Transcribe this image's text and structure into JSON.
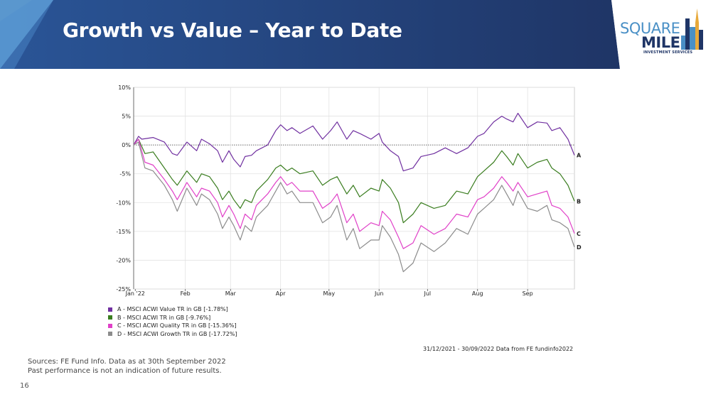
{
  "header": {
    "title": "Growth vs Value – Year to Date",
    "colors": {
      "banner_dark": "#1f3566",
      "banner_mid": "#2a5597",
      "banner_light": "#6fb3e6"
    }
  },
  "logo": {
    "line1": "SQUARE",
    "line2": "MILE",
    "line3": "INVESTMENT SERVICES",
    "icon": "building-tower-icon"
  },
  "chart_data": {
    "type": "line",
    "x_tick_labels": [
      "Jan '22",
      "Feb",
      "Mar",
      "Apr",
      "May",
      "Jun",
      "Jul",
      "Aug",
      "Sep"
    ],
    "y_tick_labels": [
      "10%",
      "5%",
      "0%",
      "-5%",
      "-10%",
      "-15%",
      "-20%",
      "-25%"
    ],
    "y_ticks": [
      10,
      5,
      0,
      -5,
      -10,
      -15,
      -20,
      -25
    ],
    "ylim": [
      -25,
      10
    ],
    "x_range": [
      "2021-12-31",
      "2022-09-30"
    ],
    "grid": true,
    "zero_line": "dotted",
    "legend_position": "bottom-left",
    "series": [
      {
        "key": "A",
        "name": "A - MSCI ACWI Value TR in GB [-1.78%]",
        "color": "#7030a0",
        "points": [
          [
            "2021-12-31",
            0
          ],
          [
            "2022-01-03",
            1.5
          ],
          [
            "2022-01-05",
            1.0
          ],
          [
            "2022-01-12",
            1.3
          ],
          [
            "2022-01-19",
            0.5
          ],
          [
            "2022-01-24",
            -1.5
          ],
          [
            "2022-01-27",
            -1.8
          ],
          [
            "2022-02-02",
            0.5
          ],
          [
            "2022-02-08",
            -1.0
          ],
          [
            "2022-02-11",
            1.0
          ],
          [
            "2022-02-16",
            0.2
          ],
          [
            "2022-02-21",
            -1.0
          ],
          [
            "2022-02-24",
            -3.0
          ],
          [
            "2022-02-28",
            -1.0
          ],
          [
            "2022-03-03",
            -2.5
          ],
          [
            "2022-03-07",
            -3.8
          ],
          [
            "2022-03-10",
            -2.0
          ],
          [
            "2022-03-14",
            -1.8
          ],
          [
            "2022-03-17",
            -1.0
          ],
          [
            "2022-03-24",
            0.0
          ],
          [
            "2022-03-29",
            2.5
          ],
          [
            "2022-04-01",
            3.5
          ],
          [
            "2022-04-05",
            2.5
          ],
          [
            "2022-04-08",
            3.0
          ],
          [
            "2022-04-13",
            2.0
          ],
          [
            "2022-04-21",
            3.3
          ],
          [
            "2022-04-27",
            1.0
          ],
          [
            "2022-05-02",
            2.5
          ],
          [
            "2022-05-06",
            4.0
          ],
          [
            "2022-05-12",
            1.0
          ],
          [
            "2022-05-16",
            2.5
          ],
          [
            "2022-05-20",
            2.0
          ],
          [
            "2022-05-27",
            1.0
          ],
          [
            "2022-06-01",
            2.0
          ],
          [
            "2022-06-03",
            0.5
          ],
          [
            "2022-06-08",
            -1.0
          ],
          [
            "2022-06-13",
            -2.0
          ],
          [
            "2022-06-16",
            -4.5
          ],
          [
            "2022-06-22",
            -4.0
          ],
          [
            "2022-06-27",
            -2.0
          ],
          [
            "2022-07-05",
            -1.5
          ],
          [
            "2022-07-12",
            -0.5
          ],
          [
            "2022-07-19",
            -1.5
          ],
          [
            "2022-07-26",
            -0.5
          ],
          [
            "2022-08-01",
            1.5
          ],
          [
            "2022-08-05",
            2.0
          ],
          [
            "2022-08-11",
            4.0
          ],
          [
            "2022-08-16",
            5.0
          ],
          [
            "2022-08-19",
            4.5
          ],
          [
            "2022-08-23",
            4.0
          ],
          [
            "2022-08-26",
            5.5
          ],
          [
            "2022-09-01",
            3.0
          ],
          [
            "2022-09-07",
            4.0
          ],
          [
            "2022-09-13",
            3.8
          ],
          [
            "2022-09-16",
            2.5
          ],
          [
            "2022-09-21",
            3.0
          ],
          [
            "2022-09-26",
            1.0
          ],
          [
            "2022-09-30",
            -1.78
          ]
        ]
      },
      {
        "key": "B",
        "name": "B - MSCI ACWI TR in GB [-9.76%]",
        "color": "#3a7d1f",
        "points": [
          [
            "2021-12-31",
            0
          ],
          [
            "2022-01-03",
            1.0
          ],
          [
            "2022-01-07",
            -1.5
          ],
          [
            "2022-01-12",
            -1.2
          ],
          [
            "2022-01-19",
            -4.0
          ],
          [
            "2022-01-24",
            -6.0
          ],
          [
            "2022-01-27",
            -7.0
          ],
          [
            "2022-02-02",
            -4.5
          ],
          [
            "2022-02-08",
            -6.5
          ],
          [
            "2022-02-11",
            -5.0
          ],
          [
            "2022-02-16",
            -5.5
          ],
          [
            "2022-02-21",
            -7.5
          ],
          [
            "2022-02-24",
            -9.5
          ],
          [
            "2022-02-28",
            -8.0
          ],
          [
            "2022-03-03",
            -9.5
          ],
          [
            "2022-03-07",
            -11.0
          ],
          [
            "2022-03-10",
            -9.5
          ],
          [
            "2022-03-14",
            -10.0
          ],
          [
            "2022-03-17",
            -8.0
          ],
          [
            "2022-03-24",
            -6.0
          ],
          [
            "2022-03-29",
            -4.0
          ],
          [
            "2022-04-01",
            -3.5
          ],
          [
            "2022-04-05",
            -4.5
          ],
          [
            "2022-04-08",
            -4.0
          ],
          [
            "2022-04-13",
            -5.0
          ],
          [
            "2022-04-21",
            -4.5
          ],
          [
            "2022-04-27",
            -7.0
          ],
          [
            "2022-05-02",
            -6.0
          ],
          [
            "2022-05-06",
            -5.5
          ],
          [
            "2022-05-12",
            -8.5
          ],
          [
            "2022-05-16",
            -7.0
          ],
          [
            "2022-05-20",
            -9.0
          ],
          [
            "2022-05-27",
            -7.5
          ],
          [
            "2022-06-01",
            -8.0
          ],
          [
            "2022-06-03",
            -6.0
          ],
          [
            "2022-06-08",
            -7.5
          ],
          [
            "2022-06-13",
            -10.0
          ],
          [
            "2022-06-16",
            -13.5
          ],
          [
            "2022-06-22",
            -12.0
          ],
          [
            "2022-06-27",
            -10.0
          ],
          [
            "2022-07-05",
            -11.0
          ],
          [
            "2022-07-12",
            -10.5
          ],
          [
            "2022-07-19",
            -8.0
          ],
          [
            "2022-07-26",
            -8.5
          ],
          [
            "2022-08-01",
            -5.5
          ],
          [
            "2022-08-05",
            -4.5
          ],
          [
            "2022-08-11",
            -3.0
          ],
          [
            "2022-08-16",
            -1.0
          ],
          [
            "2022-08-19",
            -2.0
          ],
          [
            "2022-08-23",
            -3.5
          ],
          [
            "2022-08-26",
            -1.5
          ],
          [
            "2022-09-01",
            -4.0
          ],
          [
            "2022-09-07",
            -3.0
          ],
          [
            "2022-09-13",
            -2.5
          ],
          [
            "2022-09-16",
            -4.0
          ],
          [
            "2022-09-21",
            -5.0
          ],
          [
            "2022-09-26",
            -7.0
          ],
          [
            "2022-09-30",
            -9.76
          ]
        ]
      },
      {
        "key": "C",
        "name": "C - MSCI ACWI Quality TR in GB [-15.36%]",
        "color": "#e040c8",
        "points": [
          [
            "2021-12-31",
            0
          ],
          [
            "2022-01-03",
            1.0
          ],
          [
            "2022-01-07",
            -3.0
          ],
          [
            "2022-01-12",
            -3.5
          ],
          [
            "2022-01-19",
            -6.0
          ],
          [
            "2022-01-24",
            -8.0
          ],
          [
            "2022-01-27",
            -9.5
          ],
          [
            "2022-02-02",
            -6.5
          ],
          [
            "2022-02-08",
            -9.0
          ],
          [
            "2022-02-11",
            -7.5
          ],
          [
            "2022-02-16",
            -8.0
          ],
          [
            "2022-02-21",
            -10.0
          ],
          [
            "2022-02-24",
            -12.5
          ],
          [
            "2022-02-28",
            -10.5
          ],
          [
            "2022-03-03",
            -12.0
          ],
          [
            "2022-03-07",
            -14.5
          ],
          [
            "2022-03-10",
            -12.0
          ],
          [
            "2022-03-14",
            -13.0
          ],
          [
            "2022-03-17",
            -10.5
          ],
          [
            "2022-03-24",
            -8.5
          ],
          [
            "2022-03-29",
            -6.5
          ],
          [
            "2022-04-01",
            -5.5
          ],
          [
            "2022-04-05",
            -7.0
          ],
          [
            "2022-04-08",
            -6.5
          ],
          [
            "2022-04-13",
            -8.0
          ],
          [
            "2022-04-21",
            -8.0
          ],
          [
            "2022-04-27",
            -11.0
          ],
          [
            "2022-05-02",
            -10.0
          ],
          [
            "2022-05-06",
            -8.5
          ],
          [
            "2022-05-12",
            -13.5
          ],
          [
            "2022-05-16",
            -12.0
          ],
          [
            "2022-05-20",
            -15.0
          ],
          [
            "2022-05-27",
            -13.5
          ],
          [
            "2022-06-01",
            -14.0
          ],
          [
            "2022-06-03",
            -11.5
          ],
          [
            "2022-06-08",
            -13.0
          ],
          [
            "2022-06-13",
            -16.0
          ],
          [
            "2022-06-16",
            -18.0
          ],
          [
            "2022-06-22",
            -17.0
          ],
          [
            "2022-06-27",
            -14.0
          ],
          [
            "2022-07-05",
            -15.5
          ],
          [
            "2022-07-12",
            -14.5
          ],
          [
            "2022-07-19",
            -12.0
          ],
          [
            "2022-07-26",
            -12.5
          ],
          [
            "2022-08-01",
            -9.5
          ],
          [
            "2022-08-05",
            -9.0
          ],
          [
            "2022-08-11",
            -7.5
          ],
          [
            "2022-08-16",
            -5.5
          ],
          [
            "2022-08-19",
            -6.5
          ],
          [
            "2022-08-23",
            -8.0
          ],
          [
            "2022-08-26",
            -6.5
          ],
          [
            "2022-09-01",
            -9.0
          ],
          [
            "2022-09-07",
            -8.5
          ],
          [
            "2022-09-13",
            -8.0
          ],
          [
            "2022-09-16",
            -10.5
          ],
          [
            "2022-09-21",
            -11.0
          ],
          [
            "2022-09-26",
            -12.5
          ],
          [
            "2022-09-30",
            -15.36
          ]
        ]
      },
      {
        "key": "D",
        "name": "D - MSCI ACWI Growth TR in GB [-17.72%]",
        "color": "#8c8c8c",
        "points": [
          [
            "2021-12-31",
            0
          ],
          [
            "2022-01-03",
            0.5
          ],
          [
            "2022-01-07",
            -4.0
          ],
          [
            "2022-01-12",
            -4.5
          ],
          [
            "2022-01-19",
            -7.0
          ],
          [
            "2022-01-24",
            -9.5
          ],
          [
            "2022-01-27",
            -11.5
          ],
          [
            "2022-02-02",
            -7.5
          ],
          [
            "2022-02-08",
            -10.5
          ],
          [
            "2022-02-11",
            -8.5
          ],
          [
            "2022-02-16",
            -9.5
          ],
          [
            "2022-02-21",
            -12.0
          ],
          [
            "2022-02-24",
            -14.5
          ],
          [
            "2022-02-28",
            -12.5
          ],
          [
            "2022-03-03",
            -14.0
          ],
          [
            "2022-03-07",
            -16.5
          ],
          [
            "2022-03-10",
            -14.0
          ],
          [
            "2022-03-14",
            -15.0
          ],
          [
            "2022-03-17",
            -12.5
          ],
          [
            "2022-03-24",
            -10.5
          ],
          [
            "2022-03-29",
            -8.0
          ],
          [
            "2022-04-01",
            -6.5
          ],
          [
            "2022-04-05",
            -8.5
          ],
          [
            "2022-04-08",
            -8.0
          ],
          [
            "2022-04-13",
            -10.0
          ],
          [
            "2022-04-21",
            -10.0
          ],
          [
            "2022-04-27",
            -13.5
          ],
          [
            "2022-05-02",
            -12.5
          ],
          [
            "2022-05-06",
            -10.5
          ],
          [
            "2022-05-12",
            -16.5
          ],
          [
            "2022-05-16",
            -14.5
          ],
          [
            "2022-05-20",
            -18.0
          ],
          [
            "2022-05-27",
            -16.5
          ],
          [
            "2022-06-01",
            -16.5
          ],
          [
            "2022-06-03",
            -14.0
          ],
          [
            "2022-06-08",
            -16.0
          ],
          [
            "2022-06-13",
            -19.0
          ],
          [
            "2022-06-16",
            -22.0
          ],
          [
            "2022-06-22",
            -20.5
          ],
          [
            "2022-06-27",
            -17.0
          ],
          [
            "2022-07-05",
            -18.5
          ],
          [
            "2022-07-12",
            -17.0
          ],
          [
            "2022-07-19",
            -14.5
          ],
          [
            "2022-07-26",
            -15.5
          ],
          [
            "2022-08-01",
            -12.0
          ],
          [
            "2022-08-05",
            -11.0
          ],
          [
            "2022-08-11",
            -9.5
          ],
          [
            "2022-08-16",
            -7.0
          ],
          [
            "2022-08-19",
            -8.5
          ],
          [
            "2022-08-23",
            -10.5
          ],
          [
            "2022-08-26",
            -8.0
          ],
          [
            "2022-09-01",
            -11.0
          ],
          [
            "2022-09-07",
            -11.5
          ],
          [
            "2022-09-13",
            -10.5
          ],
          [
            "2022-09-16",
            -13.0
          ],
          [
            "2022-09-21",
            -13.5
          ],
          [
            "2022-09-26",
            -14.5
          ],
          [
            "2022-09-30",
            -17.72
          ]
        ]
      }
    ]
  },
  "data_note": "31/12/2021 - 30/09/2022 Data from FE fundinfo2022",
  "footer": {
    "sources": "Sources: FE Fund Info. Data as at 30th September 2022",
    "disclaimer": "Past performance is not an indication of future results.",
    "page_number": "16"
  }
}
